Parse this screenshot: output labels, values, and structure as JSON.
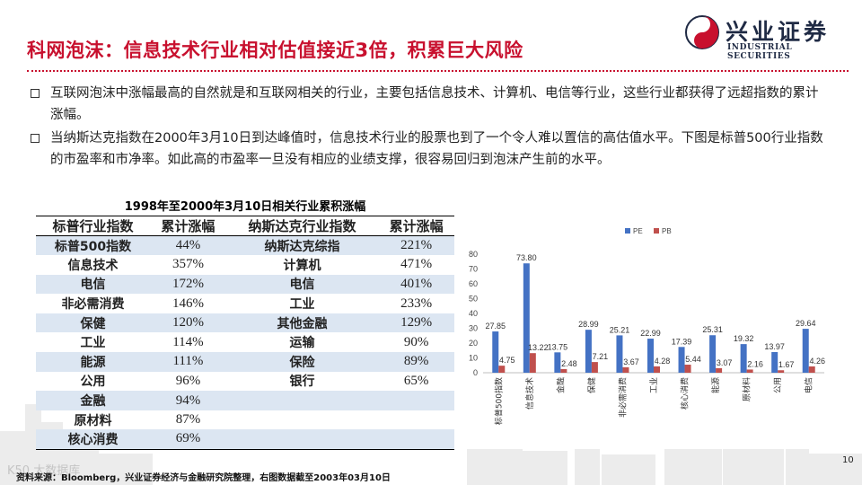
{
  "header": {
    "title": "科网泡沫：信息技术行业相对估值接近3倍，积累巨大风险",
    "logo_cn": "兴业证券",
    "logo_en": "INDUSTRIAL SECURITIES"
  },
  "bullets": [
    "互联网泡沫中涨幅最高的自然就是和互联网相关的行业，主要包括信息技术、计算机、电信等行业，这些行业都获得了远超指数的累计涨幅。",
    "当纳斯达克指数在2000年3月10日到达峰值时，信息技术行业的股票也到了一个令人难以置信的高估值水平。下图是标普500行业指数的市盈率和市净率。如此高的市盈率一旦没有相应的业绩支撑，很容易回归到泡沫产生前的水平。"
  ],
  "table": {
    "title": "1998年至2000年3月10日相关行业累积涨幅",
    "headers": [
      "标普行业指数",
      "累计涨幅",
      "纳斯达克行业指数",
      "累计涨幅"
    ],
    "rows": [
      [
        "标普500指数",
        "44%",
        "纳斯达克综指",
        "221%"
      ],
      [
        "信息技术",
        "357%",
        "计算机",
        "471%"
      ],
      [
        "电信",
        "172%",
        "电信",
        "401%"
      ],
      [
        "非必需消费",
        "146%",
        "工业",
        "233%"
      ],
      [
        "保健",
        "120%",
        "其他金融",
        "129%"
      ],
      [
        "工业",
        "114%",
        "运输",
        "90%"
      ],
      [
        "能源",
        "111%",
        "保险",
        "89%"
      ],
      [
        "公用",
        "96%",
        "银行",
        "65%"
      ],
      [
        "金融",
        "94%",
        "",
        ""
      ],
      [
        "原材料",
        "87%",
        "",
        ""
      ],
      [
        "核心消费",
        "69%",
        "",
        ""
      ]
    ]
  },
  "chart_data": {
    "type": "bar",
    "categories": [
      "标普500指数",
      "信息技术",
      "金融",
      "保健",
      "非必需消费",
      "工业",
      "核心消费",
      "能源",
      "原材料",
      "公用",
      "电信"
    ],
    "series": [
      {
        "name": "PE",
        "color": "#4472c4",
        "values": [
          27.85,
          73.8,
          13.75,
          28.99,
          25.21,
          22.99,
          17.39,
          25.31,
          19.32,
          13.97,
          29.64
        ]
      },
      {
        "name": "PB",
        "color": "#c0504d",
        "values": [
          4.75,
          13.22,
          2.48,
          7.21,
          3.67,
          4.28,
          5.44,
          3.07,
          2.16,
          1.67,
          4.26
        ]
      }
    ],
    "value_labels": {
      "PE": [
        "27.85",
        "73.80",
        "13.75",
        "28.99",
        "25.21",
        "22.99",
        "17.39",
        "25.31",
        "19.32",
        "13.97",
        "29.64"
      ],
      "PB": [
        "4.75",
        "13.22",
        "2.48",
        "7.21",
        "3.67",
        "4.28",
        "5.44",
        "3.07",
        "2.16",
        "1.67",
        "4.26"
      ]
    },
    "yticks": [
      "0",
      "10",
      "20",
      "30",
      "40",
      "50",
      "60",
      "70",
      "80"
    ],
    "ylim": [
      0,
      80
    ],
    "legend": "top-left",
    "grid": false
  },
  "footer": {
    "source": "资料来源：Bloomberg，兴业证券经济与金融研究院整理，右图数据截至2003年03月10日",
    "page": "10",
    "watermark": "K50 大数据库"
  }
}
